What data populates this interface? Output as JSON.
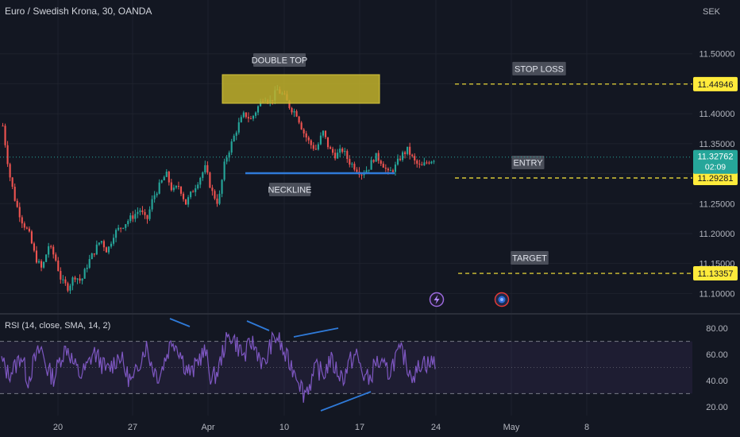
{
  "header": {
    "symbol_title": "Euro / Swedish Krona, 30, OANDA",
    "currency": "SEK"
  },
  "chart_data": {
    "type": "candlestick",
    "price_axis": {
      "range": [
        11.07,
        11.55
      ],
      "ticks": [
        "11.50000",
        "11.45000",
        "11.40000",
        "11.35000",
        "11.30000",
        "11.25000",
        "11.20000",
        "11.15000",
        "11.10000"
      ],
      "tick_values": [
        11.5,
        11.45,
        11.4,
        11.35,
        11.3,
        11.25,
        11.2,
        11.15,
        11.1
      ]
    },
    "time_axis": {
      "labels": [
        "20",
        "27",
        "Apr",
        "10",
        "17",
        "24",
        "May",
        "8"
      ]
    },
    "current_price": {
      "label": "11.32762",
      "value": 11.32762,
      "countdown": "02:09",
      "color": "#26a69a"
    },
    "price_lines": [
      {
        "name": "stop-loss",
        "label": "STOP LOSS",
        "price_label": "11.44946",
        "value": 11.44946,
        "color": "#ffeb3b"
      },
      {
        "name": "entry",
        "label": "ENTRY",
        "price_label": "11.29281",
        "value": 11.29281,
        "color": "#ffeb3b"
      },
      {
        "name": "target",
        "label": "TARGET",
        "price_label": "11.13357",
        "value": 11.13357,
        "color": "#ffeb3b"
      }
    ],
    "annotations": {
      "double_top": {
        "label": "DOUBLE TOP",
        "price_top": 11.45,
        "price_bottom": 11.405,
        "color": "#c2b22a"
      },
      "neckline": {
        "label": "NECKLINE",
        "price": 11.294,
        "color": "#2f7ad8"
      }
    },
    "candles_path": [
      11.38,
      11.3,
      11.25,
      11.22,
      11.2,
      11.16,
      11.14,
      11.18,
      11.16,
      11.12,
      11.11,
      11.13,
      11.12,
      11.15,
      11.17,
      11.19,
      11.17,
      11.2,
      11.21,
      11.22,
      11.23,
      11.24,
      11.22,
      11.26,
      11.28,
      11.3,
      11.27,
      11.28,
      11.25,
      11.27,
      11.29,
      11.31,
      11.27,
      11.25,
      11.32,
      11.35,
      11.38,
      11.4,
      11.39,
      11.41,
      11.43,
      11.42,
      11.44,
      11.43,
      11.41,
      11.4,
      11.37,
      11.35,
      11.34,
      11.37,
      11.34,
      11.33,
      11.34,
      11.32,
      11.31,
      11.3,
      11.31,
      11.33,
      11.32,
      11.3,
      11.31,
      11.33,
      11.34,
      11.32,
      11.31,
      11.32,
      11.325
    ],
    "rsi": {
      "label": "RSI (14, close, SMA, 14, 2)",
      "range": [
        15,
        88
      ],
      "ticks": [
        "80.00",
        "60.00",
        "40.00",
        "20.00"
      ],
      "tick_values": [
        80,
        60,
        40,
        20
      ],
      "upper_band": 70,
      "lower_band": 30,
      "middle": 50,
      "line_color": "#7e57c2",
      "band_fill": "rgba(126,87,194,0.10)",
      "path": [
        55,
        45,
        50,
        60,
        40,
        55,
        65,
        48,
        42,
        58,
        66,
        52,
        44,
        50,
        62,
        55,
        47,
        53,
        60,
        45,
        38,
        55,
        67,
        50,
        43,
        58,
        72,
        64,
        50,
        45,
        57,
        62,
        40,
        48,
        68,
        75,
        66,
        58,
        70,
        62,
        50,
        68,
        74,
        60,
        52,
        45,
        30,
        38,
        50,
        44,
        56,
        48,
        42,
        54,
        60,
        45,
        40,
        55,
        50,
        46,
        58,
        62,
        48,
        44,
        56,
        52,
        55
      ]
    }
  },
  "widgets": {
    "lightning_icon": "lightning-icon",
    "economic_event_icon": "calendar-event-icon"
  }
}
